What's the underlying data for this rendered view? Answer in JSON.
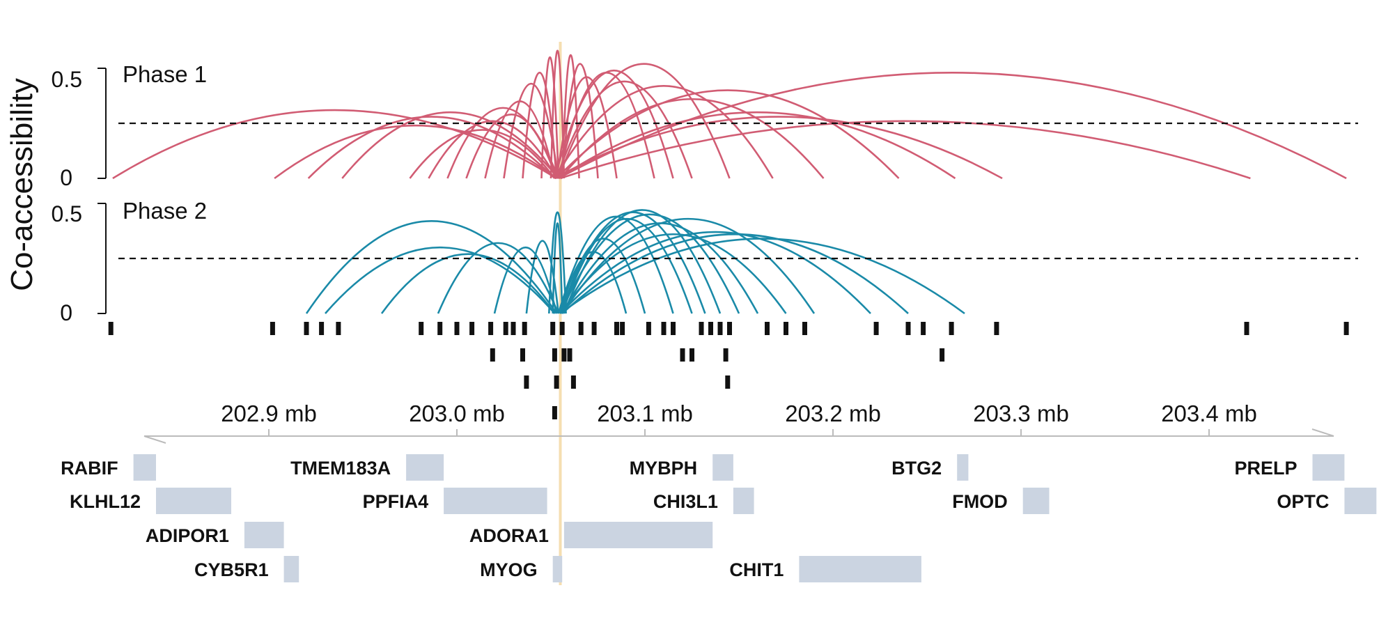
{
  "chart_data": {
    "type": "coaccessibility-arcs",
    "ylabel": "Co-accessibility",
    "xunit": "mb",
    "xlim": [
      202.815,
      203.475
    ],
    "focal_position": 203.055,
    "threshold": 0.25,
    "panels": [
      {
        "label": "Phase 1",
        "color": "#d15c73",
        "ylim": [
          0,
          0.5
        ],
        "y_ticks": [
          "0.5",
          "0"
        ],
        "links": [
          {
            "start": 202.817,
            "end": 203.053,
            "score": 0.31
          },
          {
            "start": 202.903,
            "end": 203.053,
            "score": 0.24
          },
          {
            "start": 202.921,
            "end": 203.052,
            "score": 0.28
          },
          {
            "start": 202.939,
            "end": 203.054,
            "score": 0.3
          },
          {
            "start": 202.975,
            "end": 203.052,
            "score": 0.22
          },
          {
            "start": 202.985,
            "end": 203.053,
            "score": 0.26
          },
          {
            "start": 202.995,
            "end": 203.054,
            "score": 0.32
          },
          {
            "start": 203.005,
            "end": 203.053,
            "score": 0.29
          },
          {
            "start": 203.015,
            "end": 203.052,
            "score": 0.35
          },
          {
            "start": 203.025,
            "end": 203.054,
            "score": 0.43
          },
          {
            "start": 203.035,
            "end": 203.053,
            "score": 0.48
          },
          {
            "start": 203.045,
            "end": 203.054,
            "score": 0.55
          },
          {
            "start": 203.05,
            "end": 203.057,
            "score": 0.58
          },
          {
            "start": 203.056,
            "end": 203.065,
            "score": 0.56
          },
          {
            "start": 203.056,
            "end": 203.075,
            "score": 0.52
          },
          {
            "start": 203.053,
            "end": 203.085,
            "score": 0.46
          },
          {
            "start": 203.054,
            "end": 203.105,
            "score": 0.48
          },
          {
            "start": 203.052,
            "end": 203.115,
            "score": 0.49
          },
          {
            "start": 203.053,
            "end": 203.125,
            "score": 0.44
          },
          {
            "start": 203.054,
            "end": 203.145,
            "score": 0.52
          },
          {
            "start": 203.052,
            "end": 203.168,
            "score": 0.42
          },
          {
            "start": 203.055,
            "end": 203.195,
            "score": 0.36
          },
          {
            "start": 203.053,
            "end": 203.235,
            "score": 0.4
          },
          {
            "start": 203.054,
            "end": 203.265,
            "score": 0.3
          },
          {
            "start": 203.052,
            "end": 203.29,
            "score": 0.28
          },
          {
            "start": 203.055,
            "end": 203.422,
            "score": 0.26
          },
          {
            "start": 203.054,
            "end": 203.473,
            "score": 0.48
          }
        ]
      },
      {
        "label": "Phase 2",
        "color": "#1a8aa8",
        "ylim": [
          0,
          0.5
        ],
        "y_ticks": [
          "0.5",
          "0"
        ],
        "links": [
          {
            "start": 202.92,
            "end": 203.053,
            "score": 0.42
          },
          {
            "start": 202.93,
            "end": 203.052,
            "score": 0.3
          },
          {
            "start": 202.96,
            "end": 203.052,
            "score": 0.27
          },
          {
            "start": 202.99,
            "end": 203.054,
            "score": 0.32
          },
          {
            "start": 203.02,
            "end": 203.053,
            "score": 0.3
          },
          {
            "start": 203.037,
            "end": 203.054,
            "score": 0.33
          },
          {
            "start": 203.049,
            "end": 203.058,
            "score": 0.46
          },
          {
            "start": 203.051,
            "end": 203.056,
            "score": 0.41
          },
          {
            "start": 203.055,
            "end": 203.09,
            "score": 0.28
          },
          {
            "start": 203.056,
            "end": 203.1,
            "score": 0.34
          },
          {
            "start": 203.054,
            "end": 203.115,
            "score": 0.44
          },
          {
            "start": 203.056,
            "end": 203.125,
            "score": 0.43
          },
          {
            "start": 203.055,
            "end": 203.132,
            "score": 0.46
          },
          {
            "start": 203.057,
            "end": 203.14,
            "score": 0.47
          },
          {
            "start": 203.055,
            "end": 203.15,
            "score": 0.45
          },
          {
            "start": 203.056,
            "end": 203.16,
            "score": 0.41
          },
          {
            "start": 203.055,
            "end": 203.175,
            "score": 0.36
          },
          {
            "start": 203.056,
            "end": 203.19,
            "score": 0.43
          },
          {
            "start": 203.055,
            "end": 203.22,
            "score": 0.37
          },
          {
            "start": 203.056,
            "end": 203.24,
            "score": 0.36
          },
          {
            "start": 203.055,
            "end": 203.27,
            "score": 0.34
          }
        ]
      }
    ],
    "peaks": [
      [
        202.816,
        202.902,
        202.92,
        202.928,
        202.937,
        202.981,
        202.991,
        203.0,
        203.008,
        203.018,
        203.026,
        203.03,
        203.036,
        203.051,
        203.056,
        203.066,
        203.073,
        203.085,
        203.088,
        203.102,
        203.11,
        203.115,
        203.13,
        203.135,
        203.14,
        203.145,
        203.165,
        203.175,
        203.185,
        203.223,
        203.24,
        203.248,
        203.263,
        203.287,
        203.42,
        203.473
      ],
      [
        203.019,
        203.035,
        203.052,
        203.057,
        203.06,
        203.12,
        203.125,
        203.143,
        203.258
      ],
      [
        203.037,
        203.053,
        203.062,
        203.144
      ]
    ],
    "x_ticks": [
      202.9,
      203.0,
      203.1,
      203.2,
      203.3,
      203.4
    ],
    "x_tick_labels": [
      "202.9 mb",
      "203.0 mb",
      "203.1 mb",
      "203.2 mb",
      "203.3 mb",
      "203.4 mb"
    ],
    "genes": [
      {
        "name": "RABIF",
        "start": 202.828,
        "end": 202.84,
        "row": 0
      },
      {
        "name": "KLHL12",
        "start": 202.84,
        "end": 202.88,
        "row": 1
      },
      {
        "name": "ADIPOR1",
        "start": 202.887,
        "end": 202.908,
        "row": 2
      },
      {
        "name": "CYB5R1",
        "start": 202.908,
        "end": 202.916,
        "row": 3
      },
      {
        "name": "TMEM183A",
        "start": 202.973,
        "end": 202.993,
        "row": 0
      },
      {
        "name": "PPFIA4",
        "start": 202.993,
        "end": 203.048,
        "row": 1
      },
      {
        "name": "ADORA1",
        "start": 203.057,
        "end": 203.136,
        "row": 2
      },
      {
        "name": "MYOG",
        "start": 203.051,
        "end": 203.056,
        "row": 3
      },
      {
        "name": "MYBPH",
        "start": 203.136,
        "end": 203.147,
        "row": 0
      },
      {
        "name": "CHI3L1",
        "start": 203.147,
        "end": 203.158,
        "row": 1
      },
      {
        "name": "CHIT1",
        "start": 203.182,
        "end": 203.247,
        "row": 3
      },
      {
        "name": "BTG2",
        "start": 203.266,
        "end": 203.272,
        "row": 0
      },
      {
        "name": "FMOD",
        "start": 203.301,
        "end": 203.315,
        "row": 1
      },
      {
        "name": "PRELP",
        "start": 203.455,
        "end": 203.472,
        "row": 0
      },
      {
        "name": "OPTC",
        "start": 203.472,
        "end": 203.489,
        "row": 1
      }
    ],
    "label_offset_mb": {
      "row0_left": true
    }
  }
}
